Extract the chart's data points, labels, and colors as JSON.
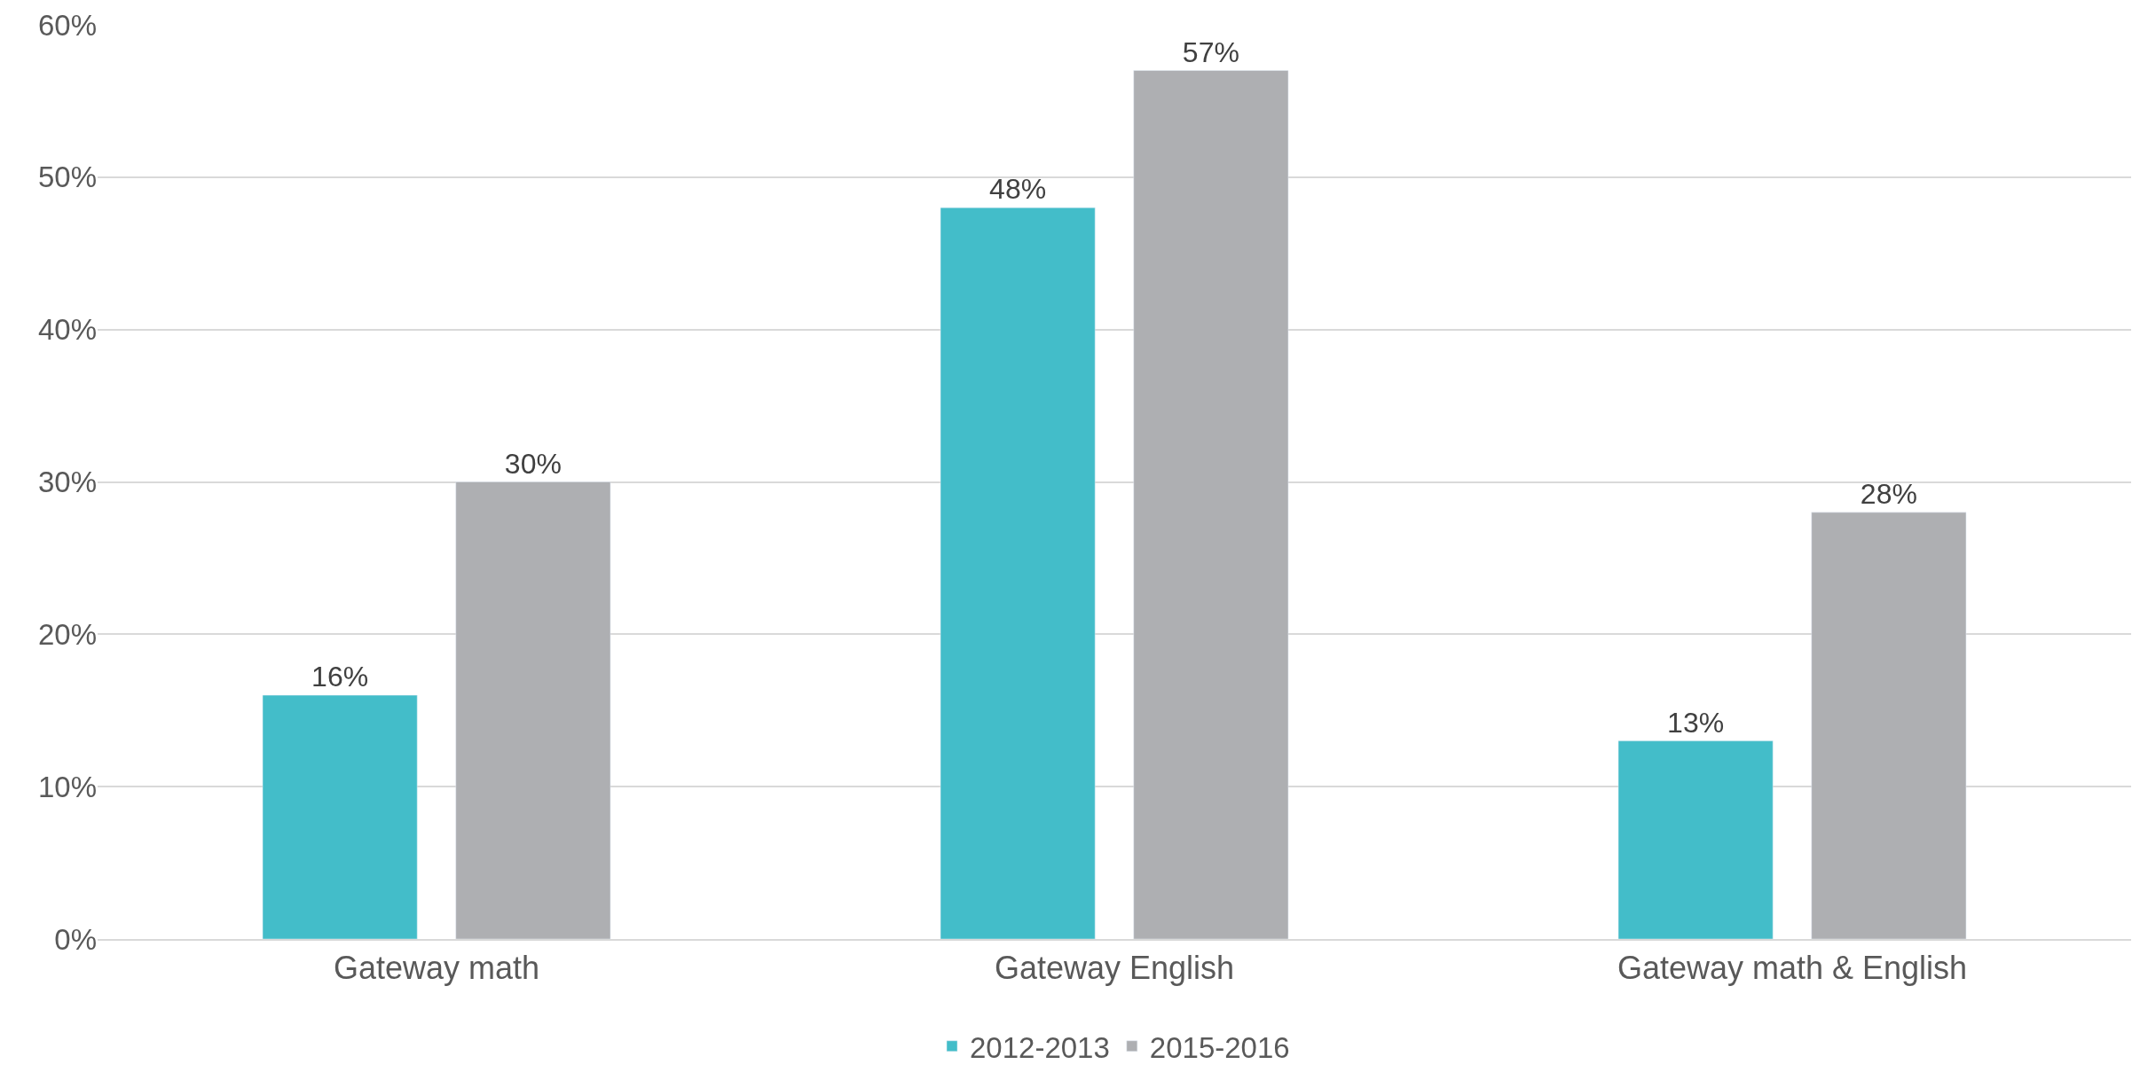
{
  "chart_data": {
    "type": "bar",
    "categories": [
      "Gateway math",
      "Gateway English",
      "Gateway math & English"
    ],
    "series": [
      {
        "name": "2012-2013",
        "color": "#43bdc9",
        "values": [
          16,
          48,
          13
        ],
        "value_labels": [
          "16%",
          "48%",
          "13%"
        ]
      },
      {
        "name": "2015-2016",
        "color": "#aeafb2",
        "values": [
          30,
          57,
          28
        ],
        "value_labels": [
          "30%",
          "57%",
          "28%"
        ]
      }
    ],
    "ylim": [
      0,
      60
    ],
    "yticks": [
      {
        "value": 0,
        "label": "0%"
      },
      {
        "value": 10,
        "label": "10%"
      },
      {
        "value": 20,
        "label": "20%"
      },
      {
        "value": 30,
        "label": "30%"
      },
      {
        "value": 40,
        "label": "40%"
      },
      {
        "value": 50,
        "label": "50%"
      },
      {
        "value": 60,
        "label": "60%"
      }
    ],
    "grid": "y",
    "legend": "bottom"
  }
}
